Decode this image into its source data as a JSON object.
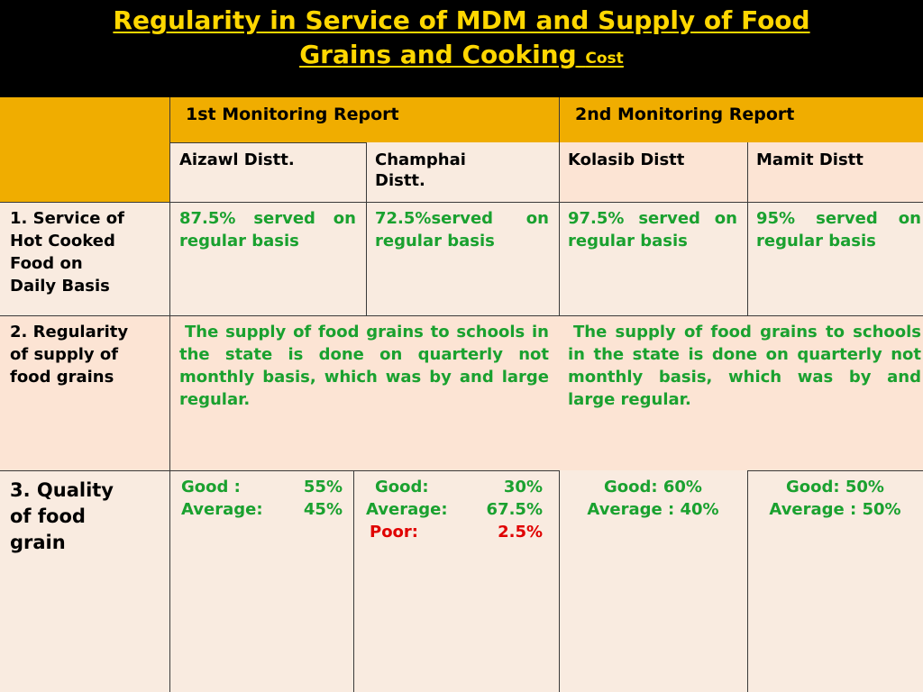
{
  "title": {
    "line1": "Regularity in Service of MDM and Supply of Food",
    "line2_main": "Grains and Cooking",
    "line2_small": "Cost"
  },
  "headers": {
    "first_report": "1st Monitoring  Report",
    "second_report": "2nd  Monitoring  Report"
  },
  "districts": {
    "aizawl": "Aizawl Distt.",
    "champhai_l1": "Champhai",
    "champhai_l2": "Distt.",
    "kolasib": "Kolasib Distt",
    "mamit": "Mamit Distt"
  },
  "rows": {
    "service": {
      "label_l1": "1. Service of",
      "label_l2": "Hot Cooked",
      "label_l3": "Food on",
      "label_l4": "Daily Basis",
      "aizawl": "87.5% served on regular basis",
      "champhai": "72.5%served on regular basis",
      "kolasib": "97.5% served on regular basis",
      "mamit": "95% served on regular basis"
    },
    "supply": {
      "label_l1": "2. Regularity",
      "label_l2": "of  supply of",
      "label_l3": "food  grains",
      "first": "The supply of food grains to schools in the state is done on quarterly not monthly basis, which was by and large regular.",
      "second": "The supply of food grains to schools in the state is done on quarterly not monthly basis, which was by and large regular."
    },
    "quality": {
      "label_l1": "3. Quality",
      "label_l2": "of food",
      "label_l3": "grain",
      "aizawl": {
        "good_label": "Good :",
        "good_value": "55%",
        "avg_label": "Average:",
        "avg_value": "45%"
      },
      "champhai": {
        "good_label": "Good:",
        "good_value": "30%",
        "avg_label": "Average:",
        "avg_value": "67.5%",
        "poor_label": "Poor:",
        "poor_value": "2.5%"
      },
      "kolasib": {
        "good": "Good: 60%",
        "avg": "Average : 40%"
      },
      "mamit": {
        "good": "Good: 50%",
        "avg": "Average : 50%"
      }
    }
  },
  "colors": {
    "title": "#ffd700",
    "header_gold": "#f0ad00",
    "green_text": "#1aa12f",
    "poor_red": "#e00000"
  }
}
